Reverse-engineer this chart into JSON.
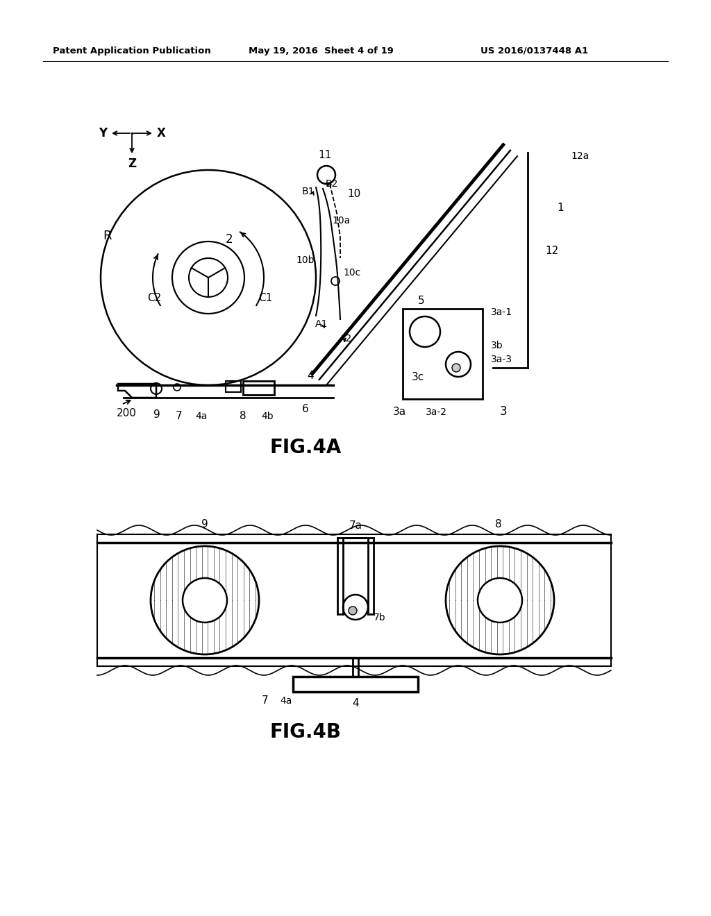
{
  "bg_color": "#ffffff",
  "line_color": "#000000",
  "header_left": "Patent Application Publication",
  "header_mid": "May 19, 2016  Sheet 4 of 19",
  "header_right": "US 2016/0137448 A1",
  "fig4a_label": "FIG.4A",
  "fig4b_label": "FIG.4B"
}
